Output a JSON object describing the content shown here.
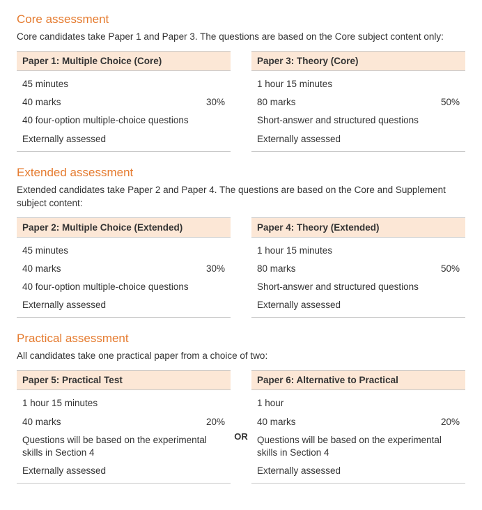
{
  "colors": {
    "heading": "#e57b2f",
    "header_bg": "#fce7d6",
    "border": "#c9c9c9",
    "text": "#333333",
    "background": "#ffffff"
  },
  "sections": [
    {
      "title": "Core assessment",
      "desc": "Core candidates take Paper 1 and Paper 3. The questions are based on the Core subject content only:",
      "connector": "",
      "cards": [
        {
          "header": "Paper 1: Multiple Choice (Core)",
          "duration": "45 minutes",
          "marks": "40 marks",
          "pct": "30%",
          "detail": "40 four-option multiple-choice questions",
          "assessed": "Externally assessed"
        },
        {
          "header": "Paper 3: Theory (Core)",
          "duration": "1 hour 15 minutes",
          "marks": "80 marks",
          "pct": "50%",
          "detail": "Short-answer and structured questions",
          "assessed": "Externally assessed"
        }
      ]
    },
    {
      "title": "Extended assessment",
      "desc": "Extended candidates take Paper 2 and Paper 4. The questions are based on the Core and Supplement subject content:",
      "connector": "",
      "cards": [
        {
          "header": "Paper 2: Multiple Choice (Extended)",
          "duration": "45 minutes",
          "marks": "40 marks",
          "pct": "30%",
          "detail": "40 four-option multiple-choice questions",
          "assessed": "Externally assessed"
        },
        {
          "header": "Paper 4: Theory (Extended)",
          "duration": "1 hour 15 minutes",
          "marks": "80 marks",
          "pct": "50%",
          "detail": "Short-answer and structured questions",
          "assessed": "Externally assessed"
        }
      ]
    },
    {
      "title": "Practical assessment",
      "desc": "All candidates take one practical paper from a choice of two:",
      "connector": "OR",
      "cards": [
        {
          "header": "Paper 5: Practical Test",
          "duration": "1 hour 15 minutes",
          "marks": "40 marks",
          "pct": "20%",
          "detail": "Questions will be based on the experimental skills in Section 4",
          "assessed": "Externally assessed"
        },
        {
          "header": "Paper 6: Alternative to Practical",
          "duration": "1 hour",
          "marks": "40 marks",
          "pct": "20%",
          "detail": "Questions will be based on the experimental skills in Section 4",
          "assessed": "Externally assessed"
        }
      ]
    }
  ]
}
